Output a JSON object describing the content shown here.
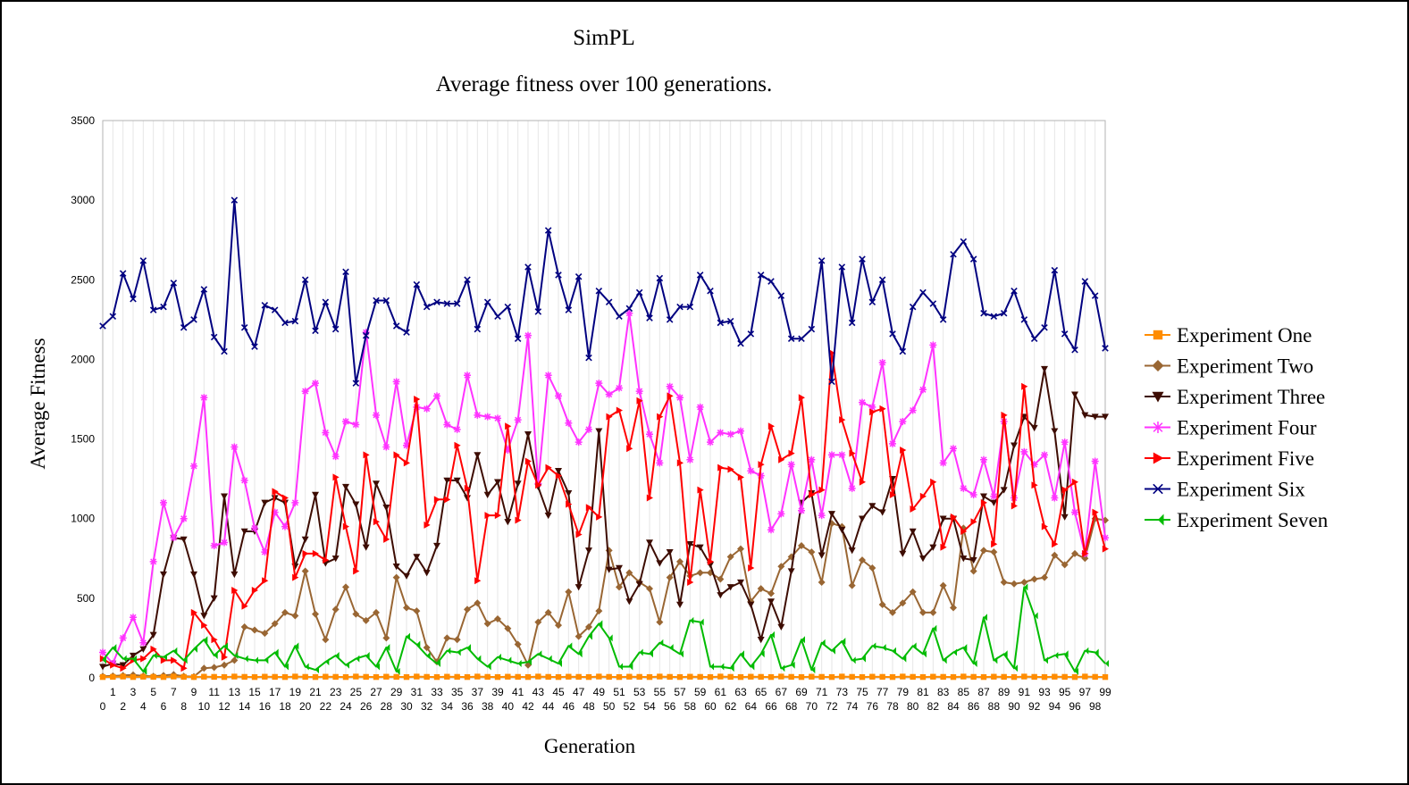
{
  "chart_data": {
    "type": "line",
    "title": "SimPL",
    "subtitle": "Average fitness over 100 generations.",
    "xlabel": "Generation",
    "ylabel": "Average Fitness",
    "ylim": [
      0,
      3500
    ],
    "yticks": [
      0,
      500,
      1000,
      1500,
      2000,
      2500,
      3000,
      3500
    ],
    "x": [
      0,
      1,
      2,
      3,
      4,
      5,
      6,
      7,
      8,
      9,
      10,
      11,
      12,
      13,
      14,
      15,
      16,
      17,
      18,
      19,
      20,
      21,
      22,
      23,
      24,
      25,
      26,
      27,
      28,
      29,
      30,
      31,
      32,
      33,
      34,
      35,
      36,
      37,
      38,
      39,
      40,
      41,
      42,
      43,
      44,
      45,
      46,
      47,
      48,
      49,
      50,
      51,
      52,
      53,
      54,
      55,
      56,
      57,
      58,
      59,
      60,
      61,
      62,
      63,
      64,
      65,
      66,
      67,
      68,
      69,
      70,
      71,
      72,
      73,
      74,
      75,
      76,
      77,
      78,
      79,
      80,
      81,
      82,
      83,
      84,
      85,
      86,
      87,
      88,
      89,
      90,
      91,
      92,
      93,
      94,
      95,
      96,
      97,
      98,
      99
    ],
    "grid": "vertical",
    "legend_position": "right",
    "series": [
      {
        "name": "Experiment One",
        "color": "#ff8c00",
        "marker": "square",
        "values": [
          5,
          6,
          8,
          5,
          7,
          6,
          5,
          8,
          6,
          5,
          7,
          6,
          5,
          8,
          6,
          5,
          7,
          6,
          5,
          8,
          6,
          5,
          7,
          6,
          5,
          8,
          6,
          5,
          7,
          6,
          5,
          8,
          6,
          5,
          7,
          6,
          5,
          8,
          6,
          5,
          7,
          6,
          5,
          8,
          6,
          5,
          7,
          6,
          5,
          8,
          6,
          5,
          7,
          6,
          5,
          8,
          6,
          5,
          7,
          6,
          5,
          8,
          6,
          5,
          7,
          6,
          5,
          8,
          6,
          5,
          7,
          6,
          5,
          8,
          6,
          5,
          7,
          6,
          5,
          8,
          6,
          5,
          7,
          6,
          5,
          8,
          6,
          5,
          7,
          6,
          5,
          8,
          6,
          5,
          7,
          6,
          5,
          8,
          6,
          5
        ]
      },
      {
        "name": "Experiment Two",
        "color": "#996633",
        "marker": "diamond",
        "values": [
          10,
          12,
          15,
          18,
          12,
          10,
          15,
          20,
          10,
          8,
          60,
          65,
          80,
          110,
          320,
          300,
          280,
          340,
          410,
          390,
          670,
          400,
          240,
          430,
          570,
          400,
          360,
          410,
          250,
          630,
          440,
          420,
          190,
          100,
          250,
          240,
          430,
          470,
          340,
          370,
          310,
          210,
          80,
          350,
          410,
          330,
          540,
          260,
          320,
          420,
          800,
          570,
          660,
          600,
          560,
          350,
          630,
          730,
          640,
          660,
          660,
          620,
          760,
          810,
          480,
          560,
          530,
          700,
          760,
          830,
          790,
          600,
          970,
          950,
          580,
          740,
          690,
          460,
          410,
          470,
          540,
          410,
          410,
          580,
          440,
          940,
          670,
          800,
          790,
          600,
          590,
          600,
          620,
          630,
          770,
          710,
          780,
          750,
          1000,
          990
        ]
      },
      {
        "name": "Experiment Three",
        "color": "#3d0c02",
        "marker": "triangle-down",
        "values": [
          70,
          90,
          80,
          140,
          180,
          270,
          650,
          880,
          870,
          650,
          390,
          500,
          1140,
          650,
          920,
          920,
          1100,
          1130,
          1100,
          700,
          870,
          1150,
          720,
          750,
          1200,
          1090,
          820,
          1220,
          1070,
          700,
          640,
          760,
          660,
          830,
          1240,
          1240,
          1130,
          1400,
          1150,
          1230,
          980,
          1220,
          1530,
          1200,
          1020,
          1300,
          1160,
          570,
          800,
          1550,
          680,
          690,
          480,
          590,
          850,
          720,
          790,
          460,
          840,
          820,
          710,
          520,
          570,
          600,
          460,
          240,
          480,
          320,
          670,
          1100,
          1160,
          770,
          1030,
          930,
          800,
          1000,
          1080,
          1040,
          1250,
          780,
          920,
          750,
          820,
          1000,
          1000,
          750,
          740,
          1140,
          1100,
          1180,
          1460,
          1640,
          1570,
          1940,
          1550,
          1010,
          1780,
          1650,
          1640,
          1640
        ]
      },
      {
        "name": "Experiment Four",
        "color": "#ff33ff",
        "marker": "star",
        "values": [
          160,
          90,
          250,
          380,
          220,
          730,
          1100,
          880,
          1000,
          1330,
          1760,
          830,
          850,
          1450,
          1240,
          940,
          790,
          1040,
          950,
          1100,
          1800,
          1850,
          1540,
          1390,
          1610,
          1590,
          2170,
          1650,
          1450,
          1860,
          1460,
          1700,
          1690,
          1770,
          1590,
          1560,
          1900,
          1650,
          1640,
          1630,
          1430,
          1620,
          2150,
          1220,
          1900,
          1770,
          1600,
          1480,
          1560,
          1850,
          1780,
          1820,
          2290,
          1800,
          1530,
          1350,
          1830,
          1760,
          1370,
          1700,
          1480,
          1540,
          1530,
          1550,
          1300,
          1270,
          930,
          1030,
          1340,
          1050,
          1370,
          1020,
          1400,
          1400,
          1190,
          1730,
          1700,
          1980,
          1470,
          1610,
          1680,
          1810,
          2090,
          1350,
          1440,
          1190,
          1150,
          1370,
          1140,
          1610,
          1130,
          1420,
          1340,
          1400,
          1130,
          1480,
          1040,
          780,
          1360,
          880
        ]
      },
      {
        "name": "Experiment Five",
        "color": "#ff0000",
        "marker": "triangle-right",
        "values": [
          120,
          80,
          60,
          110,
          120,
          180,
          110,
          110,
          60,
          410,
          330,
          240,
          130,
          550,
          450,
          550,
          610,
          1170,
          1130,
          630,
          780,
          780,
          740,
          1260,
          950,
          670,
          1400,
          980,
          870,
          1400,
          1350,
          1750,
          960,
          1120,
          1120,
          1460,
          1190,
          610,
          1020,
          1020,
          1580,
          990,
          1360,
          1210,
          1320,
          1270,
          1090,
          900,
          1070,
          1010,
          1640,
          1680,
          1440,
          1740,
          1130,
          1640,
          1770,
          1350,
          600,
          1180,
          730,
          1320,
          1310,
          1260,
          690,
          1340,
          1580,
          1370,
          1410,
          1760,
          1150,
          1180,
          2040,
          1620,
          1410,
          1230,
          1670,
          1690,
          1150,
          1430,
          1060,
          1140,
          1230,
          820,
          1010,
          920,
          980,
          1100,
          840,
          1650,
          1080,
          1830,
          1210,
          950,
          840,
          1180,
          1230,
          780,
          1040,
          810
        ]
      },
      {
        "name": "Experiment Six",
        "color": "#000080",
        "marker": "x",
        "values": [
          2210,
          2270,
          2540,
          2380,
          2620,
          2310,
          2330,
          2480,
          2200,
          2250,
          2440,
          2140,
          2050,
          3000,
          2200,
          2080,
          2340,
          2310,
          2230,
          2240,
          2500,
          2180,
          2360,
          2190,
          2550,
          1850,
          2150,
          2370,
          2370,
          2210,
          2170,
          2470,
          2330,
          2360,
          2350,
          2350,
          2500,
          2190,
          2360,
          2270,
          2330,
          2130,
          2580,
          2300,
          2810,
          2530,
          2310,
          2520,
          2010,
          2430,
          2360,
          2270,
          2320,
          2420,
          2260,
          2510,
          2250,
          2330,
          2330,
          2530,
          2430,
          2230,
          2240,
          2100,
          2160,
          2530,
          2490,
          2400,
          2130,
          2130,
          2190,
          2620,
          1860,
          2580,
          2230,
          2630,
          2360,
          2500,
          2160,
          2050,
          2330,
          2420,
          2350,
          2250,
          2660,
          2740,
          2630,
          2290,
          2270,
          2290,
          2430,
          2250,
          2130,
          2200,
          2560,
          2160,
          2060,
          2490,
          2400,
          2070
        ]
      },
      {
        "name": "Experiment Seven",
        "color": "#00bb00",
        "marker": "bowtie",
        "values": [
          110,
          190,
          120,
          120,
          40,
          140,
          130,
          170,
          110,
          180,
          240,
          140,
          200,
          140,
          120,
          110,
          110,
          160,
          70,
          200,
          70,
          50,
          100,
          140,
          80,
          120,
          140,
          70,
          190,
          40,
          260,
          210,
          140,
          90,
          170,
          160,
          190,
          120,
          70,
          130,
          110,
          90,
          100,
          150,
          120,
          90,
          200,
          150,
          260,
          340,
          250,
          70,
          70,
          160,
          150,
          220,
          190,
          150,
          360,
          350,
          70,
          70,
          60,
          150,
          70,
          150,
          270,
          60,
          80,
          240,
          50,
          220,
          170,
          230,
          110,
          120,
          200,
          190,
          170,
          120,
          200,
          150,
          310,
          110,
          160,
          190,
          90,
          380,
          110,
          150,
          60,
          570,
          390,
          110,
          140,
          150,
          40,
          170,
          160,
          90
        ]
      }
    ]
  }
}
